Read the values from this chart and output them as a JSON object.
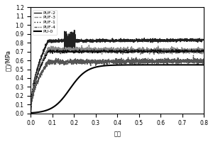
{
  "title": "",
  "xlabel": "应变",
  "ylabel": "应力/MPa",
  "xlim": [
    0.0,
    0.8
  ],
  "ylim": [
    0.0,
    1.2
  ],
  "yticks": [
    0.0,
    0.1,
    0.2,
    0.3,
    0.4,
    0.5,
    0.6,
    0.7,
    0.8,
    0.9,
    1.0,
    1.1,
    1.2
  ],
  "xticks": [
    0.0,
    0.1,
    0.2,
    0.3,
    0.4,
    0.5,
    0.6,
    0.7,
    0.8
  ],
  "series": [
    {
      "label": "PU-0",
      "color": "#000000",
      "style": "solid",
      "lw": 1.2
    },
    {
      "label": "PUF-1",
      "color": "#111111",
      "style": "solid",
      "lw": 1.0
    },
    {
      "label": "PUF-2",
      "color": "#222222",
      "style": "solid",
      "lw": 1.0
    },
    {
      "label": "PUF-3",
      "color": "#888888",
      "style": "solid",
      "lw": 1.0
    },
    {
      "label": "PUF-4",
      "color": "#555555",
      "style": "solid",
      "lw": 1.0
    }
  ],
  "legend_loc": "upper left",
  "background_color": "#ffffff",
  "noise_amplitude": 0.015
}
